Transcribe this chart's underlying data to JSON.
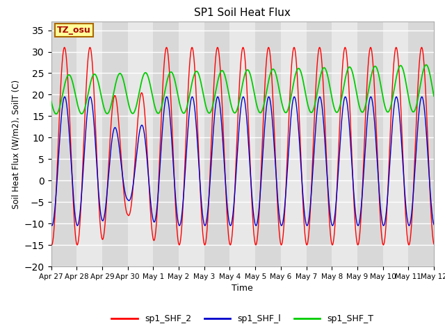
{
  "title": "SP1 Soil Heat Flux",
  "xlabel": "Time",
  "ylabel": "Soil Heat Flux (W/m2), SoilT (C)",
  "ylim": [
    -20,
    37
  ],
  "yticks": [
    -20,
    -15,
    -10,
    -5,
    0,
    5,
    10,
    15,
    20,
    25,
    30,
    35
  ],
  "plot_bg_color": "#d8d8d8",
  "grid_color": "#ffffff",
  "legend_labels": [
    "sp1_SHF_2",
    "sp1_SHF_l",
    "sp1_SHF_T"
  ],
  "legend_colors": [
    "#ff0000",
    "#0000cc",
    "#00cc00"
  ],
  "tz_label": "TZ_osu",
  "tz_box_color": "#ffff99",
  "tz_text_color": "#aa0000",
  "tz_border_color": "#aa6600",
  "n_points": 7200,
  "tick_labels": [
    "Apr 27",
    "Apr 28",
    "Apr 29",
    "Apr 30",
    "May 1",
    "May 2",
    "May 3",
    "May 4",
    "May 5",
    "May 6",
    "May 7",
    "May 8",
    "May 9",
    "May 10",
    "May 11",
    "May 12"
  ],
  "band_colors": [
    "#d8d8d8",
    "#e8e8e8"
  ]
}
